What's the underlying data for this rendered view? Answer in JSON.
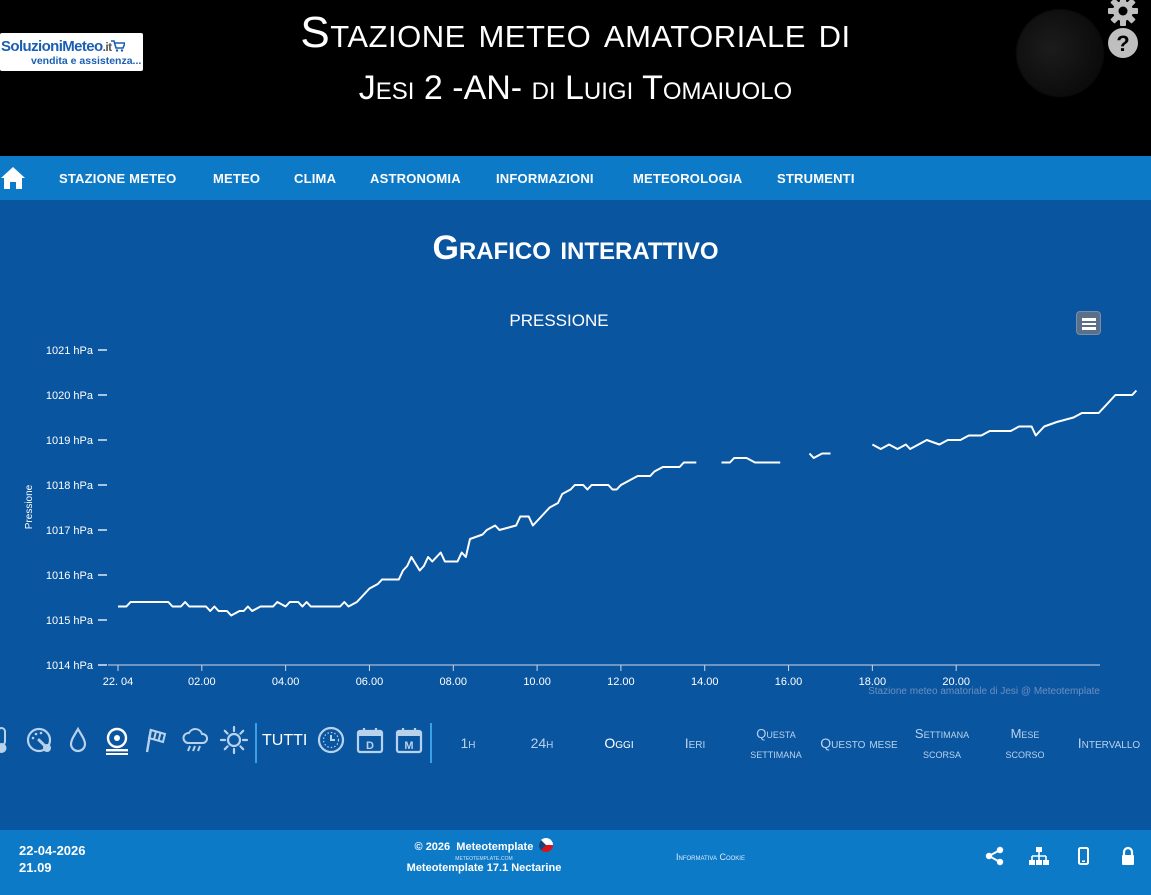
{
  "header": {
    "logo": {
      "brand_part1": "Soluzioni",
      "brand_part2": "Meteo",
      "brand_tld": ".it",
      "tagline": "vendita e assistenza..."
    },
    "title_line1": "Stazione meteo amatoriale di",
    "title_line2": "Jesi 2 -AN- di Luigi Tomaiuolo",
    "icons": [
      "gear-icon",
      "help-icon",
      "moon-icon"
    ]
  },
  "nav": {
    "items": [
      "STAZIONE METEO",
      "METEO",
      "CLIMA",
      "ASTRONOMIA",
      "INFORMAZIONI",
      "METEOROLOGIA",
      "STRUMENTI"
    ]
  },
  "page": {
    "title": "Grafico interattivo"
  },
  "chart_data": {
    "type": "line",
    "title": "PRESSIONE",
    "ylabel": "Pressione",
    "xlabel": "",
    "ylim": [
      1014,
      1021
    ],
    "yticks": [
      "1014 hPa",
      "1015 hPa",
      "1016 hPa",
      "1017 hPa",
      "1018 hPa",
      "1019 hPa",
      "1020 hPa",
      "1021 hPa"
    ],
    "xticks": [
      "22. 04",
      "02.00",
      "04.00",
      "06.00",
      "08.00",
      "10.00",
      "12.00",
      "14.00",
      "16.00",
      "18.00",
      "20.00"
    ],
    "xlim": [
      0,
      24
    ],
    "grid": false,
    "series": [
      {
        "color": "#ffffff",
        "segments": [
          [
            [
              0.0,
              1015.3
            ],
            [
              0.2,
              1015.3
            ],
            [
              0.3,
              1015.4
            ],
            [
              1.2,
              1015.4
            ],
            [
              1.3,
              1015.3
            ],
            [
              1.5,
              1015.3
            ],
            [
              1.6,
              1015.4
            ],
            [
              1.7,
              1015.3
            ],
            [
              2.1,
              1015.3
            ],
            [
              2.2,
              1015.2
            ],
            [
              2.3,
              1015.3
            ],
            [
              2.4,
              1015.2
            ],
            [
              2.6,
              1015.2
            ],
            [
              2.7,
              1015.1
            ],
            [
              2.9,
              1015.2
            ],
            [
              3.0,
              1015.2
            ],
            [
              3.1,
              1015.3
            ],
            [
              3.2,
              1015.2
            ],
            [
              3.4,
              1015.3
            ],
            [
              3.7,
              1015.3
            ],
            [
              3.8,
              1015.4
            ],
            [
              4.0,
              1015.3
            ],
            [
              4.1,
              1015.4
            ],
            [
              4.3,
              1015.4
            ],
            [
              4.4,
              1015.3
            ],
            [
              4.5,
              1015.4
            ],
            [
              4.6,
              1015.3
            ],
            [
              5.3,
              1015.3
            ],
            [
              5.4,
              1015.4
            ],
            [
              5.5,
              1015.3
            ],
            [
              5.7,
              1015.4
            ],
            [
              5.9,
              1015.6
            ],
            [
              6.0,
              1015.7
            ],
            [
              6.2,
              1015.8
            ],
            [
              6.3,
              1015.9
            ],
            [
              6.7,
              1015.9
            ],
            [
              6.8,
              1016.1
            ],
            [
              6.9,
              1016.2
            ],
            [
              7.0,
              1016.4
            ],
            [
              7.2,
              1016.1
            ],
            [
              7.3,
              1016.2
            ],
            [
              7.4,
              1016.4
            ],
            [
              7.5,
              1016.3
            ],
            [
              7.7,
              1016.5
            ],
            [
              7.8,
              1016.3
            ],
            [
              8.1,
              1016.3
            ],
            [
              8.2,
              1016.5
            ],
            [
              8.3,
              1016.4
            ],
            [
              8.4,
              1016.8
            ],
            [
              8.7,
              1016.9
            ],
            [
              8.8,
              1017.0
            ],
            [
              9.0,
              1017.1
            ],
            [
              9.1,
              1017.0
            ],
            [
              9.5,
              1017.1
            ],
            [
              9.6,
              1017.3
            ],
            [
              9.8,
              1017.3
            ],
            [
              9.9,
              1017.1
            ],
            [
              10.1,
              1017.3
            ],
            [
              10.3,
              1017.5
            ],
            [
              10.5,
              1017.6
            ],
            [
              10.6,
              1017.8
            ],
            [
              10.8,
              1017.9
            ],
            [
              10.9,
              1018.0
            ],
            [
              11.1,
              1018.0
            ],
            [
              11.2,
              1017.9
            ],
            [
              11.3,
              1018.0
            ],
            [
              11.7,
              1018.0
            ],
            [
              11.8,
              1017.9
            ],
            [
              11.9,
              1017.9
            ],
            [
              12.0,
              1018.0
            ],
            [
              12.2,
              1018.1
            ],
            [
              12.4,
              1018.2
            ],
            [
              12.7,
              1018.2
            ],
            [
              12.8,
              1018.3
            ],
            [
              13.0,
              1018.4
            ],
            [
              13.4,
              1018.4
            ],
            [
              13.5,
              1018.5
            ],
            [
              13.8,
              1018.5
            ]
          ],
          [
            [
              14.4,
              1018.5
            ],
            [
              14.6,
              1018.5
            ],
            [
              14.7,
              1018.6
            ],
            [
              15.0,
              1018.6
            ],
            [
              15.2,
              1018.5
            ],
            [
              15.8,
              1018.5
            ]
          ],
          [
            [
              16.5,
              1018.7
            ],
            [
              16.6,
              1018.6
            ],
            [
              16.8,
              1018.7
            ],
            [
              17.0,
              1018.7
            ]
          ],
          [
            [
              18.0,
              1018.9
            ],
            [
              18.2,
              1018.8
            ],
            [
              18.4,
              1018.9
            ],
            [
              18.6,
              1018.8
            ],
            [
              18.8,
              1018.9
            ],
            [
              18.9,
              1018.8
            ],
            [
              19.1,
              1018.9
            ],
            [
              19.3,
              1019.0
            ],
            [
              19.6,
              1018.9
            ],
            [
              19.8,
              1019.0
            ],
            [
              20.1,
              1019.0
            ],
            [
              20.3,
              1019.1
            ],
            [
              20.6,
              1019.1
            ],
            [
              20.8,
              1019.2
            ],
            [
              21.3,
              1019.2
            ],
            [
              21.5,
              1019.3
            ],
            [
              21.8,
              1019.3
            ],
            [
              21.9,
              1019.1
            ],
            [
              22.1,
              1019.3
            ],
            [
              22.4,
              1019.4
            ],
            [
              22.8,
              1019.5
            ],
            [
              23.0,
              1019.6
            ],
            [
              23.4,
              1019.6
            ],
            [
              23.6,
              1019.8
            ],
            [
              23.8,
              1020.0
            ],
            [
              24.2,
              1020.0
            ],
            [
              24.3,
              1020.1
            ]
          ]
        ]
      }
    ],
    "credits": "Stazione meteo amatoriale di Jesi @ Meteotemplate"
  },
  "toolbar": {
    "sensor_icons": [
      "thermometer-icon",
      "barometer-icon",
      "humidity-drop-icon",
      "pressure-gauge-icon",
      "wind-icon",
      "rain-cloud-icon",
      "sun-icon"
    ],
    "all_label": "TUTTI",
    "period_icons": [
      "clock-icon",
      "day-calendar-icon",
      "month-calendar-icon"
    ],
    "calendar_day_letter": "D",
    "calendar_month_letter": "M",
    "ranges": [
      {
        "label": "1h"
      },
      {
        "label": "24h"
      },
      {
        "label": "Oggi"
      },
      {
        "label": "Ieri"
      },
      {
        "label": "Questa settimana"
      },
      {
        "label": "Questo mese"
      },
      {
        "label": "Settimana scorsa"
      },
      {
        "label": "Mese scorso"
      },
      {
        "label": "Intervallo"
      }
    ]
  },
  "footer": {
    "date": "22-04-2026",
    "time": "21.09",
    "copyright": "© 2026",
    "brand": "Meteotemplate",
    "site": "meteotemplate.com",
    "version": "Meteotemplate 17.1 Nectarine",
    "cookie": "Informativa Cookie",
    "icons": [
      "share-icon",
      "sitemap-icon",
      "mobile-icon",
      "lock-icon"
    ]
  }
}
